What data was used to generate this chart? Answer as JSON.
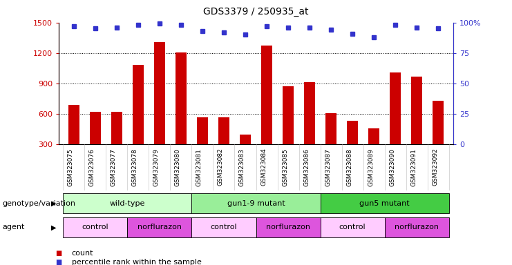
{
  "title": "GDS3379 / 250935_at",
  "samples": [
    "GSM323075",
    "GSM323076",
    "GSM323077",
    "GSM323078",
    "GSM323079",
    "GSM323080",
    "GSM323081",
    "GSM323082",
    "GSM323083",
    "GSM323084",
    "GSM323085",
    "GSM323086",
    "GSM323087",
    "GSM323088",
    "GSM323089",
    "GSM323090",
    "GSM323091",
    "GSM323092"
  ],
  "counts": [
    690,
    620,
    620,
    1080,
    1310,
    1205,
    570,
    565,
    400,
    1270,
    870,
    910,
    610,
    530,
    460,
    1010,
    970,
    730
  ],
  "percentile_ranks": [
    97,
    95,
    96,
    98,
    99,
    98,
    93,
    92,
    90,
    97,
    96,
    96,
    94,
    91,
    88,
    98,
    96,
    95
  ],
  "ylim_left": [
    300,
    1500
  ],
  "ylim_right": [
    0,
    100
  ],
  "yticks_left": [
    300,
    600,
    900,
    1200,
    1500
  ],
  "yticks_right": [
    0,
    25,
    50,
    75,
    100
  ],
  "ytick_right_labels": [
    "0",
    "25",
    "50",
    "75",
    "100%"
  ],
  "grid_values": [
    600,
    900,
    1200
  ],
  "bar_color": "#cc0000",
  "dot_color": "#3333cc",
  "bar_width": 0.5,
  "genotype_groups": [
    {
      "label": "wild-type",
      "start": 0,
      "end": 5,
      "color": "#ccffcc"
    },
    {
      "label": "gun1-9 mutant",
      "start": 6,
      "end": 11,
      "color": "#99ee99"
    },
    {
      "label": "gun5 mutant",
      "start": 12,
      "end": 17,
      "color": "#44cc44"
    }
  ],
  "agent_groups": [
    {
      "label": "control",
      "start": 0,
      "end": 2,
      "color": "#ffccff"
    },
    {
      "label": "norflurazon",
      "start": 3,
      "end": 5,
      "color": "#dd55dd"
    },
    {
      "label": "control",
      "start": 6,
      "end": 8,
      "color": "#ffccff"
    },
    {
      "label": "norflurazon",
      "start": 9,
      "end": 11,
      "color": "#dd55dd"
    },
    {
      "label": "control",
      "start": 12,
      "end": 14,
      "color": "#ffccff"
    },
    {
      "label": "norflurazon",
      "start": 15,
      "end": 17,
      "color": "#dd55dd"
    }
  ],
  "legend_count_color": "#cc0000",
  "legend_dot_color": "#3333cc",
  "ylabel_left_color": "#cc0000",
  "ylabel_right_color": "#3333cc",
  "title_fontsize": 10,
  "tick_label_fontsize": 6.5,
  "annotation_fontsize": 8,
  "legend_fontsize": 8,
  "row_label_fontsize": 8
}
